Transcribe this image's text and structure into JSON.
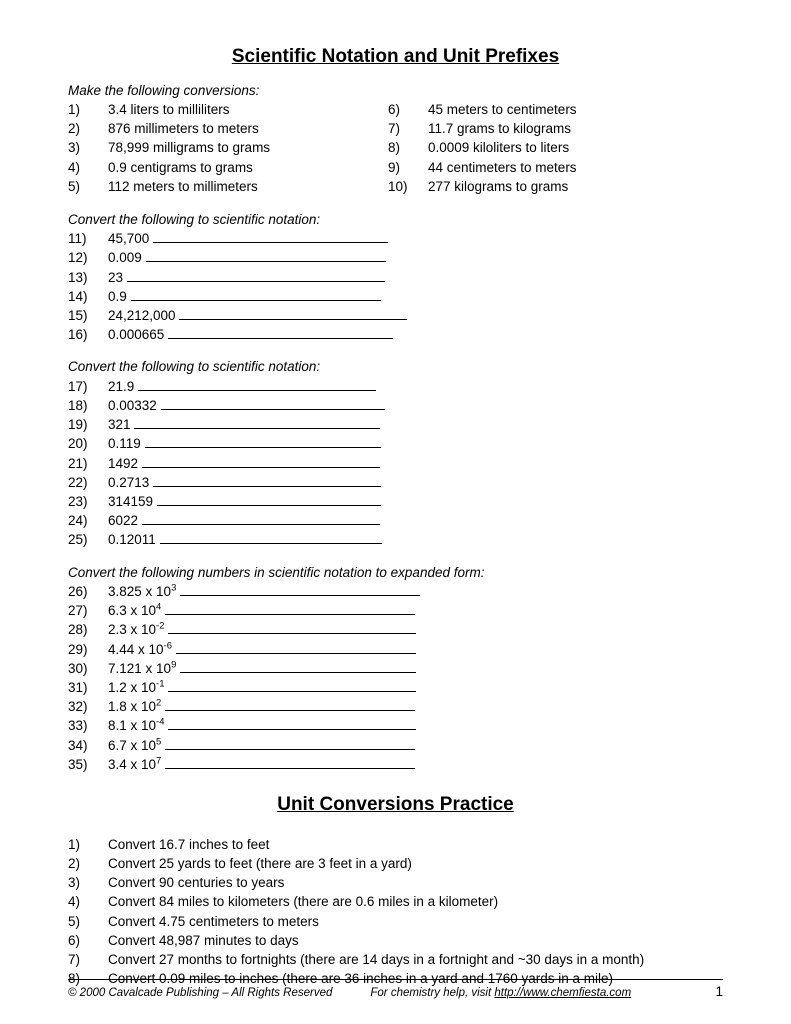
{
  "title1": "Scientific Notation and Unit Prefixes",
  "title2": "Unit Conversions Practice",
  "section1": {
    "instruction": "Make the following conversions:",
    "left": [
      {
        "n": "1)",
        "t": "3.4 liters to milliliters"
      },
      {
        "n": "2)",
        "t": "876 millimeters to meters"
      },
      {
        "n": "3)",
        "t": "78,999 milligrams to grams"
      },
      {
        "n": "4)",
        "t": "0.9 centigrams to grams"
      },
      {
        "n": "5)",
        "t": "112 meters to millimeters"
      }
    ],
    "right": [
      {
        "n": "6)",
        "t": "45 meters to centimeters"
      },
      {
        "n": "7)",
        "t": "11.7 grams to kilograms"
      },
      {
        "n": "8)",
        "t": "0.0009 kiloliters to liters"
      },
      {
        "n": "9)",
        "t": "44 centimeters to meters"
      },
      {
        "n": "10)",
        "t": "277 kilograms to grams"
      }
    ]
  },
  "section2": {
    "instruction": "Convert the following to scientific notation:",
    "items": [
      {
        "n": "11)",
        "t": "45,700",
        "bw": 235
      },
      {
        "n": "12)",
        "t": "0.009",
        "bw": 240
      },
      {
        "n": "13)",
        "t": "23",
        "bw": 258
      },
      {
        "n": "14)",
        "t": "0.9",
        "bw": 250
      },
      {
        "n": "15)",
        "t": "24,212,000",
        "bw": 228
      },
      {
        "n": "16)",
        "t": "0.000665",
        "bw": 225
      }
    ]
  },
  "section3": {
    "instruction": "Convert the following to scientific notation:",
    "items": [
      {
        "n": "17)",
        "t": "21.9",
        "bw": 238
      },
      {
        "n": "18)",
        "t": "0.00332",
        "bw": 224
      },
      {
        "n": "19)",
        "t": "321",
        "bw": 246
      },
      {
        "n": "20)",
        "t": "0.119",
        "bw": 236
      },
      {
        "n": "21)",
        "t": "1492",
        "bw": 238
      },
      {
        "n": "22)",
        "t": "0.2713",
        "bw": 228
      },
      {
        "n": "23)",
        "t": "314159",
        "bw": 224
      },
      {
        "n": "24)",
        "t": "6022",
        "bw": 238
      },
      {
        "n": "25)",
        "t": "0.12011",
        "bw": 222
      }
    ]
  },
  "section4": {
    "instruction": "Convert the following numbers in scientific notation to expanded form:",
    "items": [
      {
        "n": "26)",
        "b": "3.825 x 10",
        "e": "3",
        "bw": 240
      },
      {
        "n": "27)",
        "b": "6.3 x 10",
        "e": "4",
        "bw": 250
      },
      {
        "n": "28)",
        "b": "2.3 x 10",
        "e": "-2",
        "bw": 248
      },
      {
        "n": "29)",
        "b": "4.44 x 10",
        "e": "-6",
        "bw": 240
      },
      {
        "n": "30)",
        "b": "7.121 x 10",
        "e": "9",
        "bw": 236
      },
      {
        "n": "31)",
        "b": "1.2 x 10",
        "e": "-1",
        "bw": 248
      },
      {
        "n": "32)",
        "b": "1.8 x 10",
        "e": "2",
        "bw": 250
      },
      {
        "n": "33)",
        "b": "8.1 x 10",
        "e": "-4",
        "bw": 248
      },
      {
        "n": "34)",
        "b": "6.7 x 10",
        "e": "5",
        "bw": 250
      },
      {
        "n": "35)",
        "b": "3.4 x 10",
        "e": "7",
        "bw": 250
      }
    ]
  },
  "section5": {
    "items": [
      {
        "n": "1)",
        "t": "Convert 16.7 inches to feet"
      },
      {
        "n": "2)",
        "t": "Convert 25 yards to feet (there are 3 feet in a yard)"
      },
      {
        "n": "3)",
        "t": "Convert 90 centuries to years"
      },
      {
        "n": "4)",
        "t": "Convert 84 miles to kilometers (there are 0.6 miles in a kilometer)"
      },
      {
        "n": "5)",
        "t": "Convert 4.75 centimeters to meters"
      },
      {
        "n": "6)",
        "t": "Convert 48,987 minutes to days"
      },
      {
        "n": "7)",
        "t": "Convert 27 months to fortnights (there are 14 days in a fortnight and ~30 days in a month)"
      },
      {
        "n": "8)",
        "t": "Convert 0.09 miles to inches (there are 36 inches in a yard and 1760 yards in a mile)"
      }
    ]
  },
  "footer": {
    "copyright": "© 2000 Cavalcade Publishing – All Rights Reserved",
    "help_prefix": "For chemistry help, visit ",
    "help_link": "http://www.chemfiesta.com",
    "page": "1"
  },
  "colors": {
    "text": "#000000",
    "background": "#ffffff"
  }
}
